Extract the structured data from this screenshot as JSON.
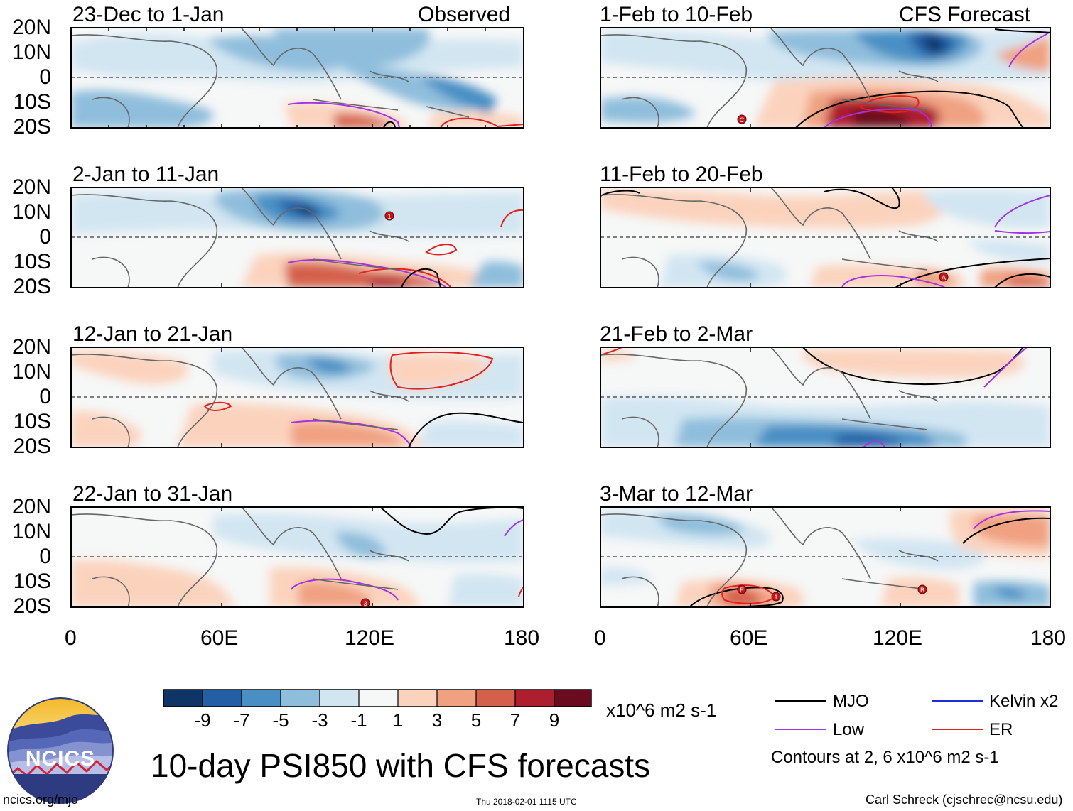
{
  "header": {
    "left_label": "Observed",
    "right_label": "CFS Forecast"
  },
  "lat_labels": [
    "20N",
    "10N",
    "0",
    "10S",
    "20S"
  ],
  "lon_labels": [
    "0",
    "60E",
    "120E",
    "180"
  ],
  "panels": {
    "left": [
      {
        "title": "23-Dec to 1-Jan"
      },
      {
        "title": "2-Jan to 11-Jan"
      },
      {
        "title": "12-Jan to 21-Jan"
      },
      {
        "title": "22-Jan to 31-Jan"
      }
    ],
    "right": [
      {
        "title": "1-Feb to 10-Feb"
      },
      {
        "title": "11-Feb to 20-Feb"
      },
      {
        "title": "21-Feb to 2-Mar"
      },
      {
        "title": "3-Mar to 12-Mar"
      }
    ]
  },
  "storm_markers": [
    "1",
    "3",
    "C",
    "A",
    "E",
    "B"
  ],
  "colorbar": {
    "labels": [
      "-9",
      "-7",
      "-5",
      "-3",
      "-1",
      "1",
      "3",
      "5",
      "7",
      "9"
    ],
    "colors": [
      "#0e3566",
      "#245fa6",
      "#4a8fc4",
      "#8fbedc",
      "#d2e6f2",
      "#f6f7f7",
      "#fbd3bd",
      "#f0a182",
      "#d4604b",
      "#ad1f2f",
      "#6a0b1f"
    ],
    "units": "x10^6 m2 s-1"
  },
  "legend": {
    "items": [
      {
        "label": "MJO",
        "color": "#000000"
      },
      {
        "label": "Kelvin x2",
        "color": "#1f2fd8"
      },
      {
        "label": "Low",
        "color": "#a133e6"
      },
      {
        "label": "ER",
        "color": "#e0211f"
      }
    ],
    "note": "Contours at 2, 6 x10^6 m2 s-1"
  },
  "logo": {
    "text": "NCICS"
  },
  "title": "10-day PSI850 with CFS forecasts",
  "footer": {
    "url": "ncics.org/mjo",
    "timestamp": "Thu 2018-02-01 1115 UTC",
    "credit": "Carl Schreck (cjschrec@ncsu.edu)"
  }
}
